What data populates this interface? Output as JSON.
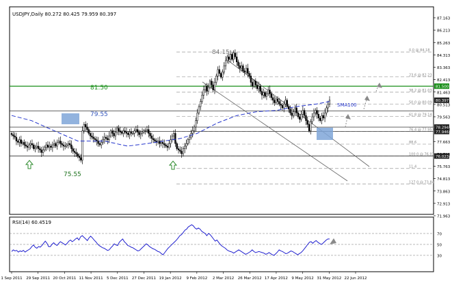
{
  "colors": {
    "bg": "#ffffff",
    "candle": "#000000",
    "sma": "#2233cc",
    "green_level": "#1a8f1a",
    "rsi_line": "#1f1fcf",
    "highlight_box": "#7fa6d8",
    "arrow_gray": "#8a8a8a",
    "arrow_green": "#2e8b2e",
    "channel": "#606060",
    "fib": "#9a9a9a",
    "axis_text": "#000000",
    "annotation_gray": "#7a7a7a"
  },
  "header": {
    "symbol_label": "USDJPY,Daily  80.272 80.425 79.959 80.397"
  },
  "rsi": {
    "label": "RSI(14) 60.4519",
    "levels": [
      70,
      50,
      30
    ],
    "ticks": [
      "70",
      "50",
      "30"
    ]
  },
  "price_axis": {
    "ticks": [
      "87.163",
      "86.213",
      "85.263",
      "84.313",
      "83.363",
      "82.413",
      "81.463",
      "80.513",
      "79.563",
      "78.613",
      "77.663",
      "76.713",
      "75.763",
      "74.813",
      "73.863",
      "72.913",
      "71.963"
    ],
    "tags": [
      {
        "text": "81.500",
        "price": 81.5,
        "color": "#1a8f1a"
      },
      {
        "text": "80.397",
        "price": 80.397,
        "color": "#222222"
      },
      {
        "text": "78.294",
        "price": 78.294,
        "color": "#222222"
      },
      {
        "text": "77.946",
        "price": 77.946,
        "color": "#222222"
      },
      {
        "text": "76.023",
        "price": 76.023,
        "color": "#222222"
      }
    ]
  },
  "time_axis": {
    "labels": [
      "1 Sep 2011",
      "29 Sep 2011",
      "20 Oct 2011",
      "11 Nov 2011",
      "5 Dec 2011",
      "27 Dec 2011",
      "19 Jan 2012",
      "9 Feb 2012",
      "2 Mar 2012",
      "26 Mar 2012",
      "17 Apr 2012",
      "9 May 2012",
      "31 May 2012",
      "22 Jun 2012"
    ]
  },
  "annotations": {
    "high": "84.15",
    "low": "75.55",
    "level_green": "81.50",
    "level_blue": "79.55",
    "sma": "SMA100"
  },
  "fib_levels": [
    {
      "label": "0.0 @ 84.18",
      "price": 84.18
    },
    {
      "label": "23.6 @ 82.23",
      "price": 82.23
    },
    {
      "label": "38.2 @ 81.03",
      "price": 81.03
    },
    {
      "label": "50.0 @ 80.09",
      "price": 80.09
    },
    {
      "label": "61.8 @ 79.14",
      "price": 79.14
    },
    {
      "label": "76.4 @ 77.95",
      "price": 77.95
    },
    {
      "label": "88.6",
      "price": 76.96
    },
    {
      "label": "100.0 @ 76.03",
      "price": 76.03
    },
    {
      "label": "11.4",
      "price": 75.05
    },
    {
      "label": "127.0 @ 73.84",
      "price": 73.84
    }
  ],
  "chart_data": {
    "type": "candlestick",
    "ylim": [
      71.45,
      87.72
    ],
    "rsi_ylim": [
      0,
      100
    ],
    "price": [
      77.7,
      77.6,
      77.5,
      77.2,
      77.1,
      77.3,
      77.0,
      77.1,
      76.9,
      76.8,
      76.7,
      76.9,
      77.0,
      76.9,
      76.6,
      76.7,
      76.8,
      76.6,
      76.5,
      76.3,
      76.5,
      76.7,
      76.9,
      76.7,
      76.8,
      76.7,
      76.9,
      77.0,
      76.8,
      77.1,
      77.2,
      77.0,
      76.9,
      76.8,
      76.8,
      76.9,
      77.0,
      76.9,
      76.6,
      76.4,
      76.3,
      76.2,
      76.0,
      75.9,
      75.7,
      78.0,
      78.5,
      78.3,
      78.1,
      77.8,
      77.6,
      77.5,
      77.4,
      77.3,
      77.2,
      77.0,
      76.9,
      77.1,
      77.3,
      77.5,
      77.4,
      77.3,
      77.6,
      78.0,
      77.8,
      77.6,
      77.9,
      78.2,
      78.0,
      77.9,
      77.8,
      78.0,
      77.9,
      77.8,
      77.7,
      77.9,
      77.8,
      77.8,
      78.0,
      78.1,
      77.9,
      77.7,
      77.8,
      77.9,
      78.0,
      78.0,
      78.1,
      77.8,
      77.6,
      77.4,
      77.3,
      77.2,
      77.1,
      77.2,
      77.0,
      77.1,
      77.0,
      76.9,
      76.8,
      76.7,
      77.0,
      77.3,
      77.6,
      77.8,
      77.0,
      76.6,
      76.5,
      76.4,
      76.2,
      76.6,
      76.8,
      77.0,
      77.3,
      77.5,
      77.8,
      78.0,
      78.3,
      78.8,
      79.4,
      79.9,
      80.3,
      80.8,
      81.2,
      81.5,
      81.1,
      81.4,
      81.9,
      81.6,
      81.2,
      81.8,
      82.3,
      82.8,
      82.5,
      82.2,
      82.6,
      83.1,
      83.5,
      83.8,
      83.6,
      84.0,
      83.6,
      84.1,
      83.8,
      83.4,
      83.1,
      82.9,
      83.1,
      82.7,
      82.6,
      82.9,
      82.5,
      82.3,
      81.8,
      81.5,
      81.9,
      81.6,
      81.3,
      81.5,
      81.1,
      80.8,
      81.0,
      80.7,
      80.9,
      81.2,
      80.9,
      80.6,
      80.4,
      80.2,
      80.5,
      80.3,
      80.1,
      80.0,
      79.8,
      80.1,
      80.4,
      79.9,
      79.7,
      79.4,
      79.2,
      79.5,
      79.8,
      79.4,
      79.1,
      78.9,
      79.3,
      79.6,
      79.2,
      78.8,
      78.5,
      78.0,
      78.7,
      79.1,
      79.4,
      79.6,
      79.3,
      79.0,
      78.8,
      79.2,
      79.0,
      79.4,
      79.8,
      80.1,
      80.397
    ],
    "sma100": [
      [
        0,
        79.2
      ],
      [
        30,
        78.8
      ],
      [
        60,
        78.1
      ],
      [
        100,
        77.2
      ],
      [
        140,
        77.2
      ],
      [
        175,
        76.8
      ],
      [
        205,
        77.0
      ],
      [
        230,
        77.2
      ],
      [
        255,
        77.4
      ],
      [
        280,
        77.8
      ],
      [
        310,
        78.6
      ],
      [
        340,
        79.2
      ],
      [
        370,
        79.5
      ],
      [
        400,
        79.6
      ],
      [
        430,
        79.9
      ],
      [
        460,
        80.1
      ],
      [
        480,
        80.3
      ]
    ],
    "rsi": [
      37,
      40,
      38,
      39,
      36,
      38,
      37,
      39,
      36,
      38,
      40,
      42,
      46,
      49,
      45,
      43,
      46,
      45,
      48,
      52,
      56,
      52,
      46,
      46,
      50,
      53,
      50,
      48,
      52,
      55,
      53,
      51,
      49,
      52,
      56,
      58,
      55,
      57,
      60,
      62,
      58,
      64,
      66,
      63,
      60,
      57,
      62,
      65,
      62,
      58,
      55,
      51,
      48,
      46,
      44,
      43,
      41,
      39,
      40,
      44,
      47,
      51,
      49,
      48,
      54,
      57,
      60,
      55,
      52,
      48,
      47,
      45,
      44,
      42,
      40,
      38,
      39,
      42,
      45,
      48,
      51,
      49,
      46,
      44,
      42,
      41,
      39,
      37,
      36,
      33,
      31,
      35,
      39,
      43,
      46,
      49,
      52,
      55,
      58,
      62,
      66,
      68,
      72,
      76,
      78,
      82,
      84,
      86,
      84,
      80,
      78,
      80,
      78,
      74,
      72,
      70,
      66,
      70,
      68,
      64,
      60,
      56,
      58,
      54,
      50,
      47,
      45,
      43,
      40,
      38,
      37,
      36,
      34,
      36,
      38,
      40,
      38,
      36,
      34,
      32,
      33,
      35,
      37,
      40,
      37,
      35,
      36,
      37,
      36,
      35,
      34,
      32,
      33,
      35,
      33,
      31,
      30,
      33,
      36,
      40,
      38,
      37,
      35,
      33,
      34,
      36,
      38,
      37,
      35,
      33,
      31,
      33,
      35,
      38,
      42,
      46,
      50,
      54,
      55,
      52,
      55,
      57,
      54,
      52,
      50,
      52,
      55,
      58,
      60,
      60
    ]
  }
}
